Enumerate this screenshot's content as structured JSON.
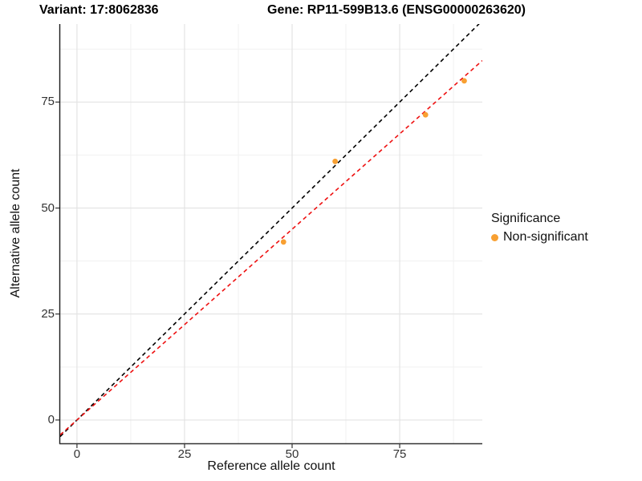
{
  "titles": {
    "variant": "Variant: 17:8062836",
    "gene": "Gene: RP11-599B13.6 (ENSG00000263620)"
  },
  "axes": {
    "x_label": "Reference allele count",
    "y_label": "Alternative allele count",
    "x_ticks": [
      0,
      25,
      50,
      75
    ],
    "y_ticks": [
      0,
      25,
      50,
      75
    ]
  },
  "legend": {
    "title": "Significance",
    "position": "right",
    "items": [
      {
        "label": "Non-significant",
        "color": "#F8A032"
      }
    ]
  },
  "chart_data": {
    "type": "scatter",
    "title": "Variant: 17:8062836 — Gene: RP11-599B13.6 (ENSG00000263620)",
    "xlabel": "Reference allele count",
    "ylabel": "Alternative allele count",
    "xlim": [
      -3.9,
      94.2
    ],
    "ylim": [
      -5.5,
      93.4
    ],
    "x_major_gridlines": [
      0,
      25,
      50,
      75
    ],
    "y_major_gridlines": [
      0,
      25,
      50,
      75
    ],
    "x_minor_gridlines": [
      12.5,
      37.5,
      62.5,
      87.5
    ],
    "y_minor_gridlines": [
      12.5,
      37.5,
      62.5,
      87.5
    ],
    "grid": "on",
    "legend_position": "right",
    "series": [
      {
        "name": "Non-significant",
        "color": "#F8A032",
        "points": [
          {
            "x": 48,
            "y": 42
          },
          {
            "x": 60,
            "y": 61
          },
          {
            "x": 81,
            "y": 72
          },
          {
            "x": 90,
            "y": 80
          }
        ]
      }
    ],
    "reference_lines": [
      {
        "name": "identity-line",
        "slope": 1.0,
        "intercept": 0,
        "color": "#000000",
        "style": "dashed"
      },
      {
        "name": "fit-line",
        "slope": 0.9,
        "intercept": 0,
        "color": "#EE1111",
        "style": "dashed"
      }
    ],
    "colors": {
      "point": "#F8A032",
      "identity_line": "#000000",
      "fit_line": "#EE1111",
      "major_grid": "#E3E3E3",
      "minor_grid": "#F1F1F1",
      "axis_line": "#333333",
      "background": "#FFFFFF"
    }
  }
}
